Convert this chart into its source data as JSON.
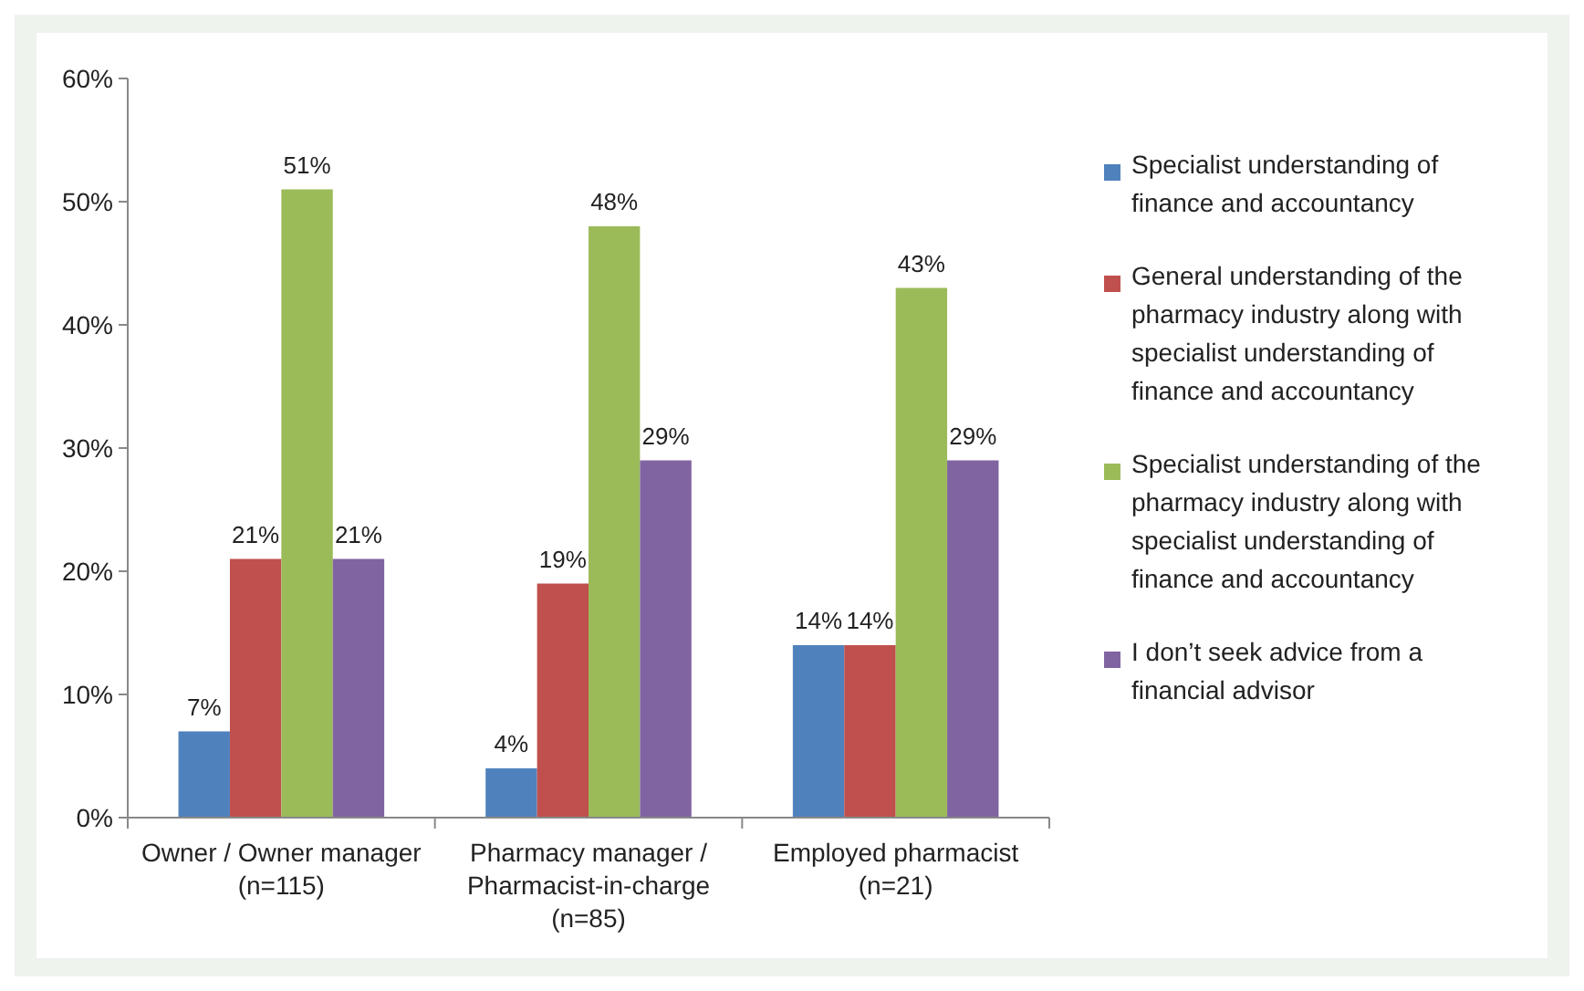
{
  "chart_data": {
    "type": "bar",
    "categories": [
      "Owner / Owner manager\n(n=115)",
      "Pharmacy manager /\nPharmacist-in-charge\n(n=85)",
      "Employed pharmacist\n(n=21)"
    ],
    "series": [
      {
        "name": "Specialist understanding of finance and accountancy",
        "color": "#4f81bd",
        "values": [
          7,
          4,
          14
        ],
        "value_labels": [
          "7%",
          "4%",
          "14%"
        ]
      },
      {
        "name": "General understanding of the pharmacy industry along with specialist understanding of finance and accountancy",
        "color": "#c0504d",
        "values": [
          21,
          19,
          14
        ],
        "value_labels": [
          "21%",
          "19%",
          "14%"
        ]
      },
      {
        "name": "Specialist understanding of the pharmacy industry along with specialist understanding of finance and accountancy",
        "color": "#9bbb59",
        "values": [
          51,
          48,
          43
        ],
        "value_labels": [
          "51%",
          "48%",
          "43%"
        ]
      },
      {
        "name": "I don’t seek advice from a financial advisor",
        "color": "#8064a2",
        "values": [
          21,
          29,
          29
        ],
        "value_labels": [
          "21%",
          "29%",
          "29%"
        ]
      }
    ],
    "ylim": [
      0,
      60
    ],
    "yticks": [
      {
        "value": 0,
        "label": "0%"
      },
      {
        "value": 10,
        "label": "10%"
      },
      {
        "value": 20,
        "label": "20%"
      },
      {
        "value": 30,
        "label": "30%"
      },
      {
        "value": 40,
        "label": "40%"
      },
      {
        "value": 50,
        "label": "50%"
      },
      {
        "value": 60,
        "label": "60%"
      }
    ],
    "legend": "right"
  }
}
